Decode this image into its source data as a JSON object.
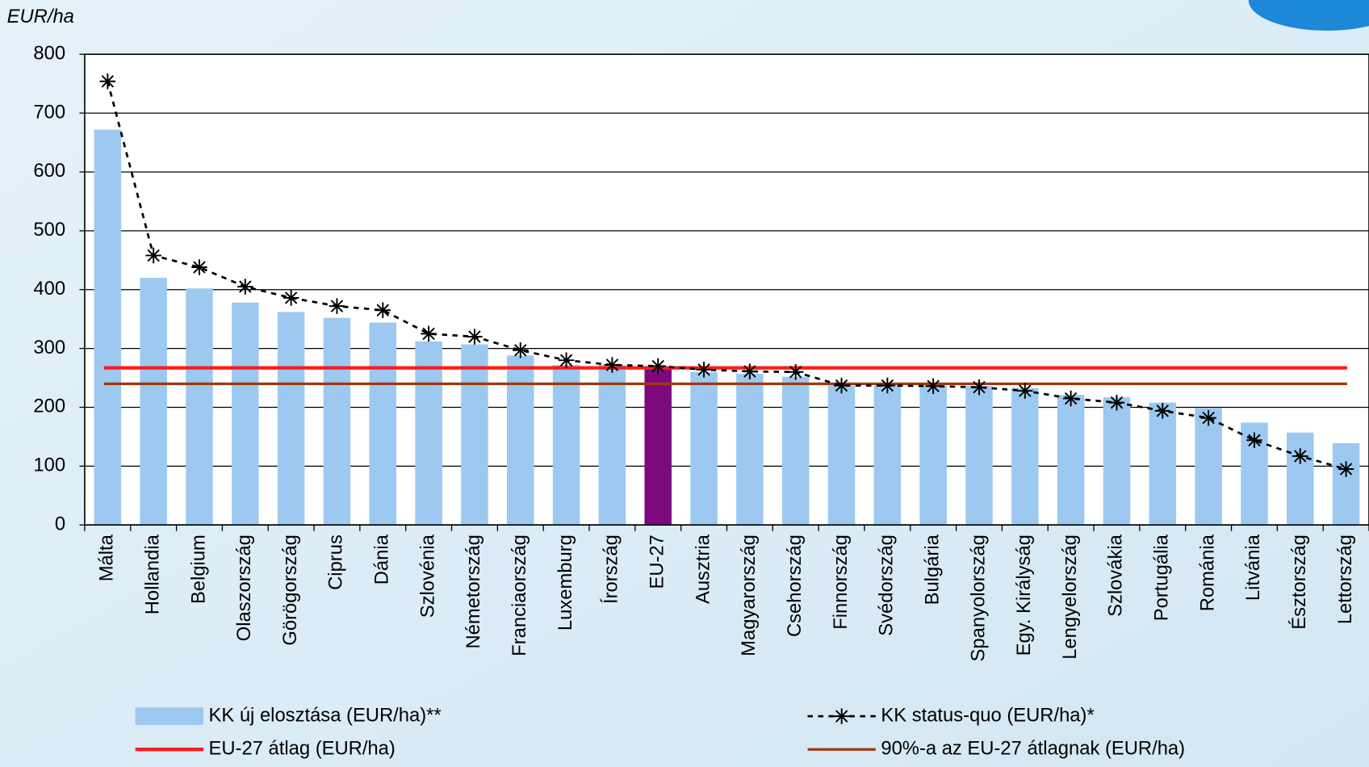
{
  "chart_data": {
    "type": "bar",
    "y_label": "EUR/ha",
    "categories": [
      "Málta",
      "Hollandia",
      "Belgium",
      "Olaszország",
      "Görögország",
      "Ciprus",
      "Dánia",
      "Szlovénia",
      "Németország",
      "Franciaország",
      "Luxemburg",
      "Írország",
      "EU-27",
      "Ausztria",
      "Magyarország",
      "Csehország",
      "Finnország",
      "Svédország",
      "Bulgária",
      "Spanyolország",
      "Egy. Királyság",
      "Lengyelország",
      "Szlovákia",
      "Portugália",
      "Románia",
      "Litvánia",
      "Észtország",
      "Lettország"
    ],
    "series": [
      {
        "name": "KK új elosztása (EUR/ha)**",
        "type": "bar",
        "color": "#9dc9f1",
        "values": [
          672,
          420,
          402,
          378,
          362,
          352,
          344,
          312,
          307,
          288,
          272,
          272,
          268,
          260,
          257,
          252,
          237,
          237,
          236,
          236,
          233,
          221,
          217,
          208,
          199,
          174,
          157,
          139
        ]
      },
      {
        "name": "KK status-quo (EUR/ha)*",
        "type": "line",
        "color": "#000000",
        "values": [
          754,
          458,
          438,
          405,
          386,
          372,
          365,
          325,
          320,
          297,
          280,
          272,
          270,
          264,
          261,
          260,
          237,
          237,
          236,
          234,
          228,
          215,
          208,
          194,
          182,
          144,
          117,
          95
        ]
      }
    ],
    "highlight": {
      "category": "EU-27",
      "color": "#7d0a7d"
    },
    "reference_lines": [
      {
        "name": "EU-27 átlag (EUR/ha)",
        "color": "#ff1a1a",
        "value": 267
      },
      {
        "name": "90%-a az EU-27 átlagnak (EUR/ha)",
        "color": "#a0380f",
        "value": 240
      }
    ],
    "ylim": [
      0,
      800
    ],
    "yticks": [
      0,
      100,
      200,
      300,
      400,
      500,
      600,
      700,
      800
    ],
    "grid": true
  }
}
